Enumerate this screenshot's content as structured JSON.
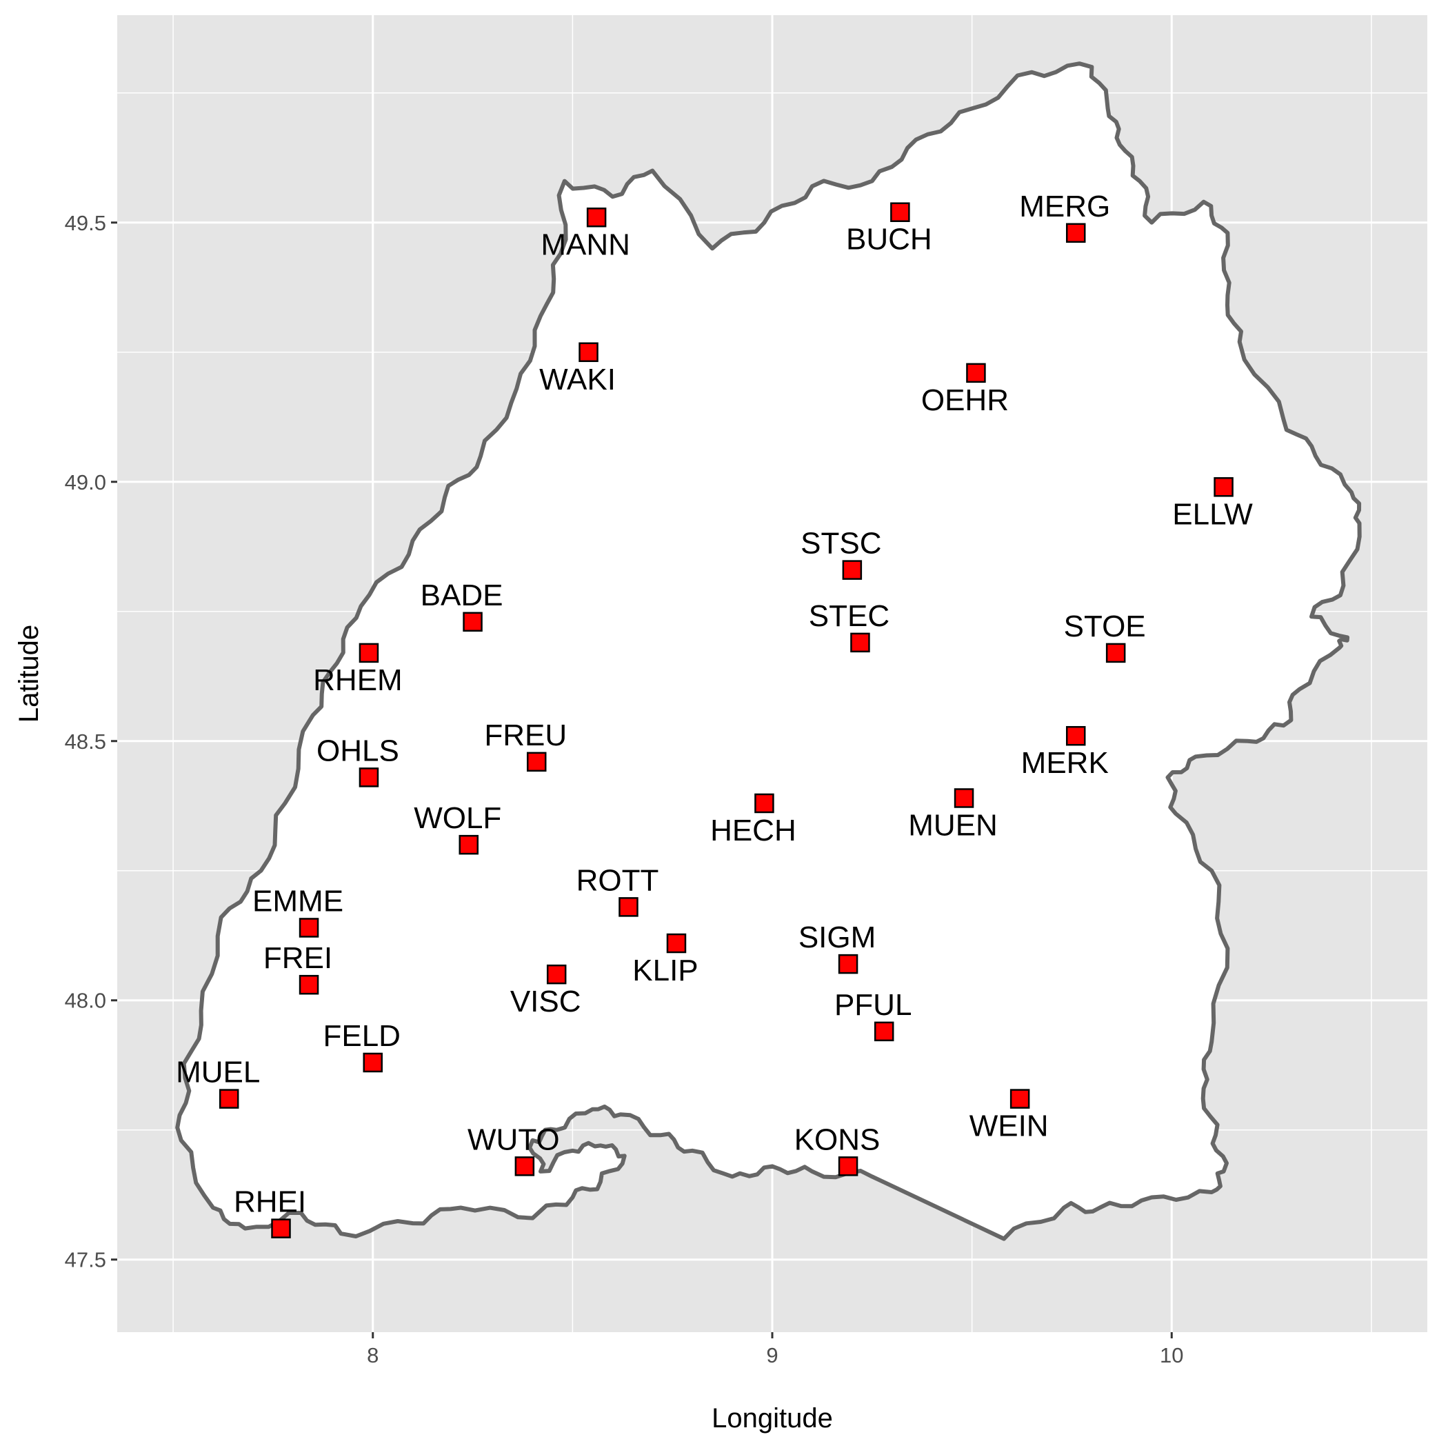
{
  "chart_data": {
    "type": "scatter",
    "title": "",
    "xlabel": "Longitude",
    "ylabel": "Latitude",
    "xlim": [
      7.36,
      10.64
    ],
    "ylim": [
      47.36,
      49.9
    ],
    "x_ticks": [
      "8",
      "9",
      "10"
    ],
    "y_ticks": [
      "47.5",
      "48.0",
      "48.5",
      "49.0",
      "49.5"
    ],
    "grid": true,
    "panel_background": "#e5e5e5",
    "grid_color": "#ffffff",
    "point_fill": "#ff0000",
    "point_stroke": "#000000",
    "outline_color": "#666666",
    "region_fill": "#ffffff",
    "region_outline": [
      [
        9.58,
        47.54
      ],
      [
        9.73,
        47.6
      ],
      [
        9.82,
        47.6
      ],
      [
        9.95,
        47.62
      ],
      [
        10.1,
        47.63
      ],
      [
        10.13,
        47.67
      ],
      [
        10.11,
        47.74
      ],
      [
        10.08,
        47.83
      ],
      [
        10.1,
        47.92
      ],
      [
        10.14,
        48.1
      ],
      [
        10.1,
        48.25
      ],
      [
        10.01,
        48.36
      ],
      [
        9.99,
        48.43
      ],
      [
        10.06,
        48.47
      ],
      [
        10.19,
        48.5
      ],
      [
        10.28,
        48.53
      ],
      [
        10.32,
        48.6
      ],
      [
        10.42,
        48.68
      ],
      [
        10.44,
        48.7
      ],
      [
        10.35,
        48.74
      ],
      [
        10.43,
        48.8
      ],
      [
        10.47,
        48.92
      ],
      [
        10.45,
        48.98
      ],
      [
        10.36,
        49.05
      ],
      [
        10.28,
        49.12
      ],
      [
        10.17,
        49.27
      ],
      [
        10.14,
        49.36
      ],
      [
        10.14,
        49.48
      ],
      [
        10.08,
        49.54
      ],
      [
        9.95,
        49.5
      ],
      [
        9.92,
        49.58
      ],
      [
        9.87,
        49.65
      ],
      [
        9.84,
        49.72
      ],
      [
        9.8,
        49.8
      ],
      [
        9.65,
        49.79
      ],
      [
        9.5,
        49.72
      ],
      [
        9.36,
        49.66
      ],
      [
        9.25,
        49.58
      ],
      [
        9.1,
        49.57
      ],
      [
        8.98,
        49.5
      ],
      [
        8.85,
        49.45
      ],
      [
        8.7,
        49.6
      ],
      [
        8.6,
        49.55
      ],
      [
        8.48,
        49.58
      ],
      [
        8.47,
        49.44
      ],
      [
        8.42,
        49.32
      ],
      [
        8.36,
        49.18
      ],
      [
        8.27,
        49.05
      ],
      [
        8.18,
        48.97
      ],
      [
        8.09,
        48.86
      ],
      [
        7.97,
        48.76
      ],
      [
        7.91,
        48.65
      ],
      [
        7.85,
        48.55
      ],
      [
        7.78,
        48.38
      ],
      [
        7.72,
        48.25
      ],
      [
        7.62,
        48.16
      ],
      [
        7.57,
        47.98
      ],
      [
        7.53,
        47.85
      ],
      [
        7.52,
        47.73
      ],
      [
        7.6,
        47.6
      ],
      [
        7.68,
        47.56
      ],
      [
        7.82,
        47.59
      ],
      [
        7.92,
        47.55
      ],
      [
        8.1,
        47.57
      ],
      [
        8.22,
        47.6
      ],
      [
        8.4,
        47.58
      ],
      [
        8.5,
        47.62
      ],
      [
        8.57,
        47.65
      ],
      [
        8.63,
        47.7
      ],
      [
        8.57,
        47.72
      ],
      [
        8.5,
        47.71
      ],
      [
        8.42,
        47.67
      ],
      [
        8.4,
        47.73
      ],
      [
        8.46,
        47.75
      ],
      [
        8.55,
        47.79
      ],
      [
        8.62,
        47.78
      ],
      [
        8.72,
        47.74
      ],
      [
        8.8,
        47.71
      ],
      [
        8.9,
        47.66
      ],
      [
        9.0,
        47.68
      ],
      [
        9.1,
        47.67
      ],
      [
        9.25,
        47.66
      ]
    ],
    "points": [
      {
        "label": "MANN",
        "x": 8.56,
        "y": 49.51,
        "label_pos": "below"
      },
      {
        "label": "BUCH",
        "x": 9.32,
        "y": 49.52,
        "label_pos": "below"
      },
      {
        "label": "MERG",
        "x": 9.76,
        "y": 49.48,
        "label_pos": "above"
      },
      {
        "label": "WAKI",
        "x": 8.54,
        "y": 49.25,
        "label_pos": "below"
      },
      {
        "label": "OEHR",
        "x": 9.51,
        "y": 49.21,
        "label_pos": "below"
      },
      {
        "label": "ELLW",
        "x": 10.13,
        "y": 48.99,
        "label_pos": "below"
      },
      {
        "label": "STSC",
        "x": 9.2,
        "y": 48.83,
        "label_pos": "above"
      },
      {
        "label": "BADE",
        "x": 8.25,
        "y": 48.73,
        "label_pos": "above"
      },
      {
        "label": "STEC",
        "x": 9.22,
        "y": 48.69,
        "label_pos": "above"
      },
      {
        "label": "RHEM",
        "x": 7.99,
        "y": 48.67,
        "label_pos": "below"
      },
      {
        "label": "STOE",
        "x": 9.86,
        "y": 48.67,
        "label_pos": "above"
      },
      {
        "label": "MERK",
        "x": 9.76,
        "y": 48.51,
        "label_pos": "below"
      },
      {
        "label": "OHLS",
        "x": 7.99,
        "y": 48.43,
        "label_pos": "above"
      },
      {
        "label": "FREU",
        "x": 8.41,
        "y": 48.46,
        "label_pos": "above"
      },
      {
        "label": "HECH",
        "x": 8.98,
        "y": 48.38,
        "label_pos": "below"
      },
      {
        "label": "MUEN",
        "x": 9.48,
        "y": 48.39,
        "label_pos": "below"
      },
      {
        "label": "WOLF",
        "x": 8.24,
        "y": 48.3,
        "label_pos": "above"
      },
      {
        "label": "ROTT",
        "x": 8.64,
        "y": 48.18,
        "label_pos": "above"
      },
      {
        "label": "EMME",
        "x": 7.84,
        "y": 48.14,
        "label_pos": "above"
      },
      {
        "label": "KLIP",
        "x": 8.76,
        "y": 48.11,
        "label_pos": "below"
      },
      {
        "label": "SIGM",
        "x": 9.19,
        "y": 48.07,
        "label_pos": "above"
      },
      {
        "label": "FREI",
        "x": 7.84,
        "y": 48.03,
        "label_pos": "above"
      },
      {
        "label": "VISC",
        "x": 8.46,
        "y": 48.05,
        "label_pos": "below"
      },
      {
        "label": "PFUL",
        "x": 9.28,
        "y": 47.94,
        "label_pos": "above"
      },
      {
        "label": "FELD",
        "x": 8.0,
        "y": 47.88,
        "label_pos": "above"
      },
      {
        "label": "MUEL",
        "x": 7.64,
        "y": 47.81,
        "label_pos": "above"
      },
      {
        "label": "WEIN",
        "x": 9.62,
        "y": 47.81,
        "label_pos": "below"
      },
      {
        "label": "WUTO",
        "x": 8.38,
        "y": 47.68,
        "label_pos": "above"
      },
      {
        "label": "KONS",
        "x": 9.19,
        "y": 47.68,
        "label_pos": "above"
      },
      {
        "label": "RHEI",
        "x": 7.77,
        "y": 47.56,
        "label_pos": "above"
      }
    ]
  }
}
